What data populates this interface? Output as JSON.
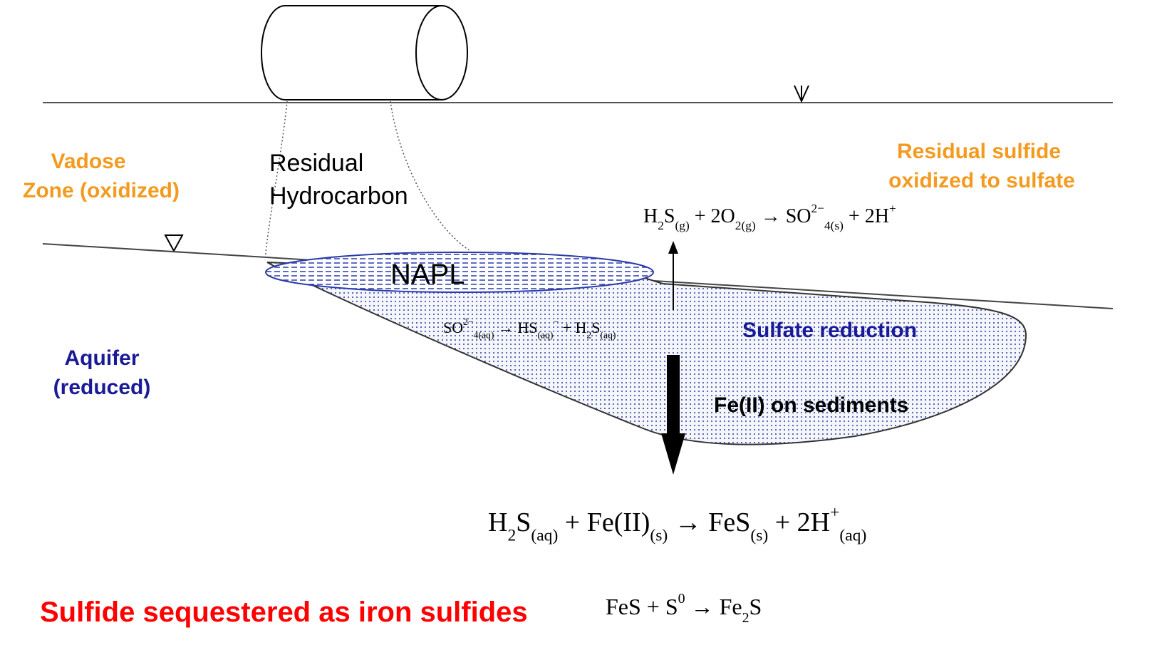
{
  "labels": {
    "vadose": [
      "Vadose",
      "Zone (oxidized)"
    ],
    "residual_hydrocarbon": [
      "Residual",
      "Hydrocarbon"
    ],
    "residual_sulfide": [
      "Residual sulfide",
      "oxidized to sulfate"
    ],
    "napl": "NAPL",
    "aquifer": [
      "Aquifer",
      "(reduced)"
    ],
    "sulfate_reduction": "Sulfate reduction",
    "fe_sediments": "Fe(II) on sediments",
    "sequestered": "Sulfide sequestered as iron sulfides"
  },
  "equations": [
    {
      "parts": [
        {
          "t": "H"
        },
        {
          "sub": "2"
        },
        {
          "t": "S"
        },
        {
          "sub": "(g)"
        },
        {
          "t": " + 2O"
        },
        {
          "sub": "2(g)"
        },
        {
          "t": " → SO"
        },
        {
          "sup": "2−"
        },
        {
          "sub": "4(s)"
        },
        {
          "t": " + 2H"
        },
        {
          "sup": "+"
        }
      ]
    },
    {
      "parts": [
        {
          "t": "SO"
        },
        {
          "sup": "2−"
        },
        {
          "sub": "4(aq)"
        },
        {
          "t": " → HS"
        },
        {
          "sub": "(aq)"
        },
        {
          "sup": "−"
        },
        {
          "t": " + H"
        },
        {
          "sub": "2"
        },
        {
          "t": "S"
        },
        {
          "sub": "(aq)"
        }
      ]
    },
    {
      "parts": [
        {
          "t": "H"
        },
        {
          "sub": "2"
        },
        {
          "t": "S"
        },
        {
          "sub": "(aq)"
        },
        {
          "t": " + Fe(II)"
        },
        {
          "sub": "(s)"
        },
        {
          "t": " → FeS"
        },
        {
          "sub": "(s)"
        },
        {
          "t": " + 2H"
        },
        {
          "sup": "+"
        },
        {
          "sub": "(aq)"
        }
      ]
    },
    {
      "parts": [
        {
          "t": "FeS + S"
        },
        {
          "sup": "0"
        },
        {
          "t": " → Fe"
        },
        {
          "sub": "2"
        },
        {
          "t": "S"
        }
      ]
    }
  ]
}
